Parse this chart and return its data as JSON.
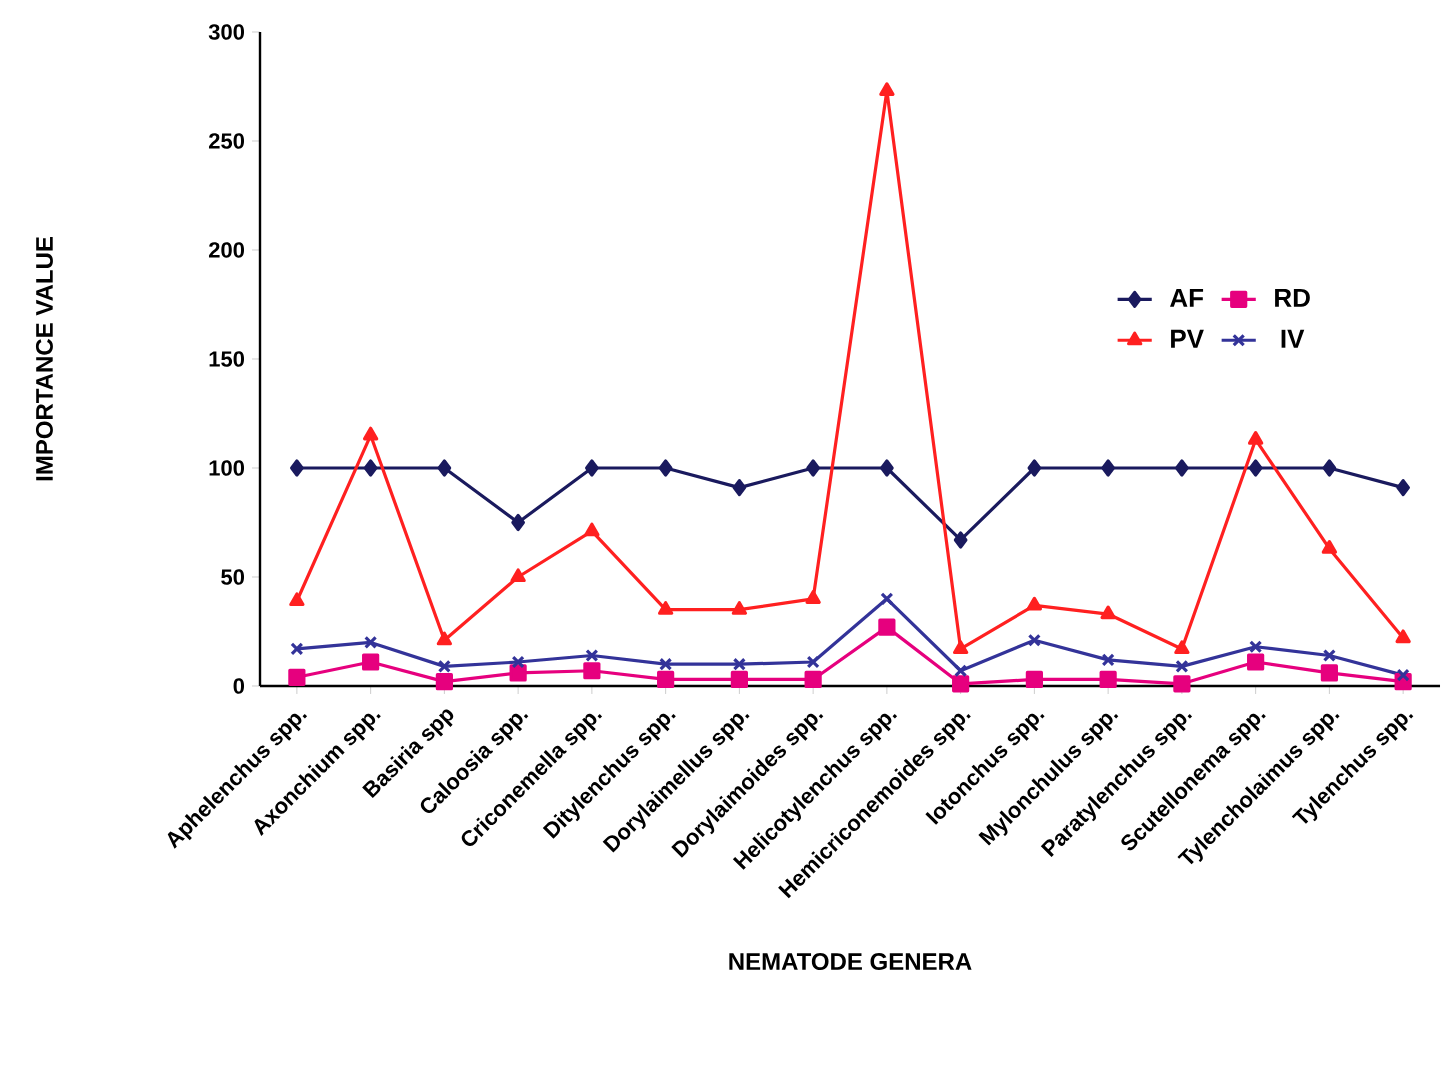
{
  "chart_data": {
    "type": "line",
    "xlabel": "NEMATODE GENERA",
    "ylabel": "IMPORTANCE VALUE",
    "categories": [
      "Aphelenchus spp.",
      "Axonchium spp.",
      "Basiria spp",
      "Caloosia spp.",
      "Criconemella spp.",
      "Ditylenchus spp.",
      "Dorylaimellus spp.",
      "Dorylaimoides spp.",
      "Helicotylenchus spp.",
      "Hemicriconemoides spp.",
      "Iotonchus spp.",
      "Mylonchulus spp.",
      "Paratylenchus spp.",
      "Scutellonema spp.",
      "Tylencholaimus spp.",
      "Tylenchus spp."
    ],
    "series": [
      {
        "name": "AF",
        "color": "#1a1a5e",
        "marker": "diamond",
        "values": [
          100,
          100,
          100,
          75,
          100,
          100,
          91,
          100,
          100,
          67,
          100,
          100,
          100,
          100,
          100,
          91
        ]
      },
      {
        "name": "RD",
        "color": "#e6007e",
        "marker": "square",
        "values": [
          4,
          11,
          2,
          6,
          7,
          3,
          3,
          3,
          27,
          1,
          3,
          3,
          1,
          11,
          6,
          2
        ]
      },
      {
        "name": "PV",
        "color": "#ff2020",
        "marker": "triangle",
        "values": [
          39,
          115,
          21,
          50,
          71,
          35,
          35,
          40,
          273,
          17,
          37,
          33,
          17,
          113,
          63,
          22
        ]
      },
      {
        "name": "IV",
        "color": "#333399",
        "marker": "cross",
        "values": [
          17,
          20,
          9,
          11,
          14,
          10,
          10,
          11,
          40,
          7,
          21,
          12,
          9,
          18,
          14,
          5
        ]
      }
    ],
    "ylim": [
      0,
      300
    ],
    "yticks": [
      0,
      50,
      100,
      150,
      200,
      250,
      300
    ],
    "grid": false,
    "legend": "right",
    "line_style": "solid"
  }
}
